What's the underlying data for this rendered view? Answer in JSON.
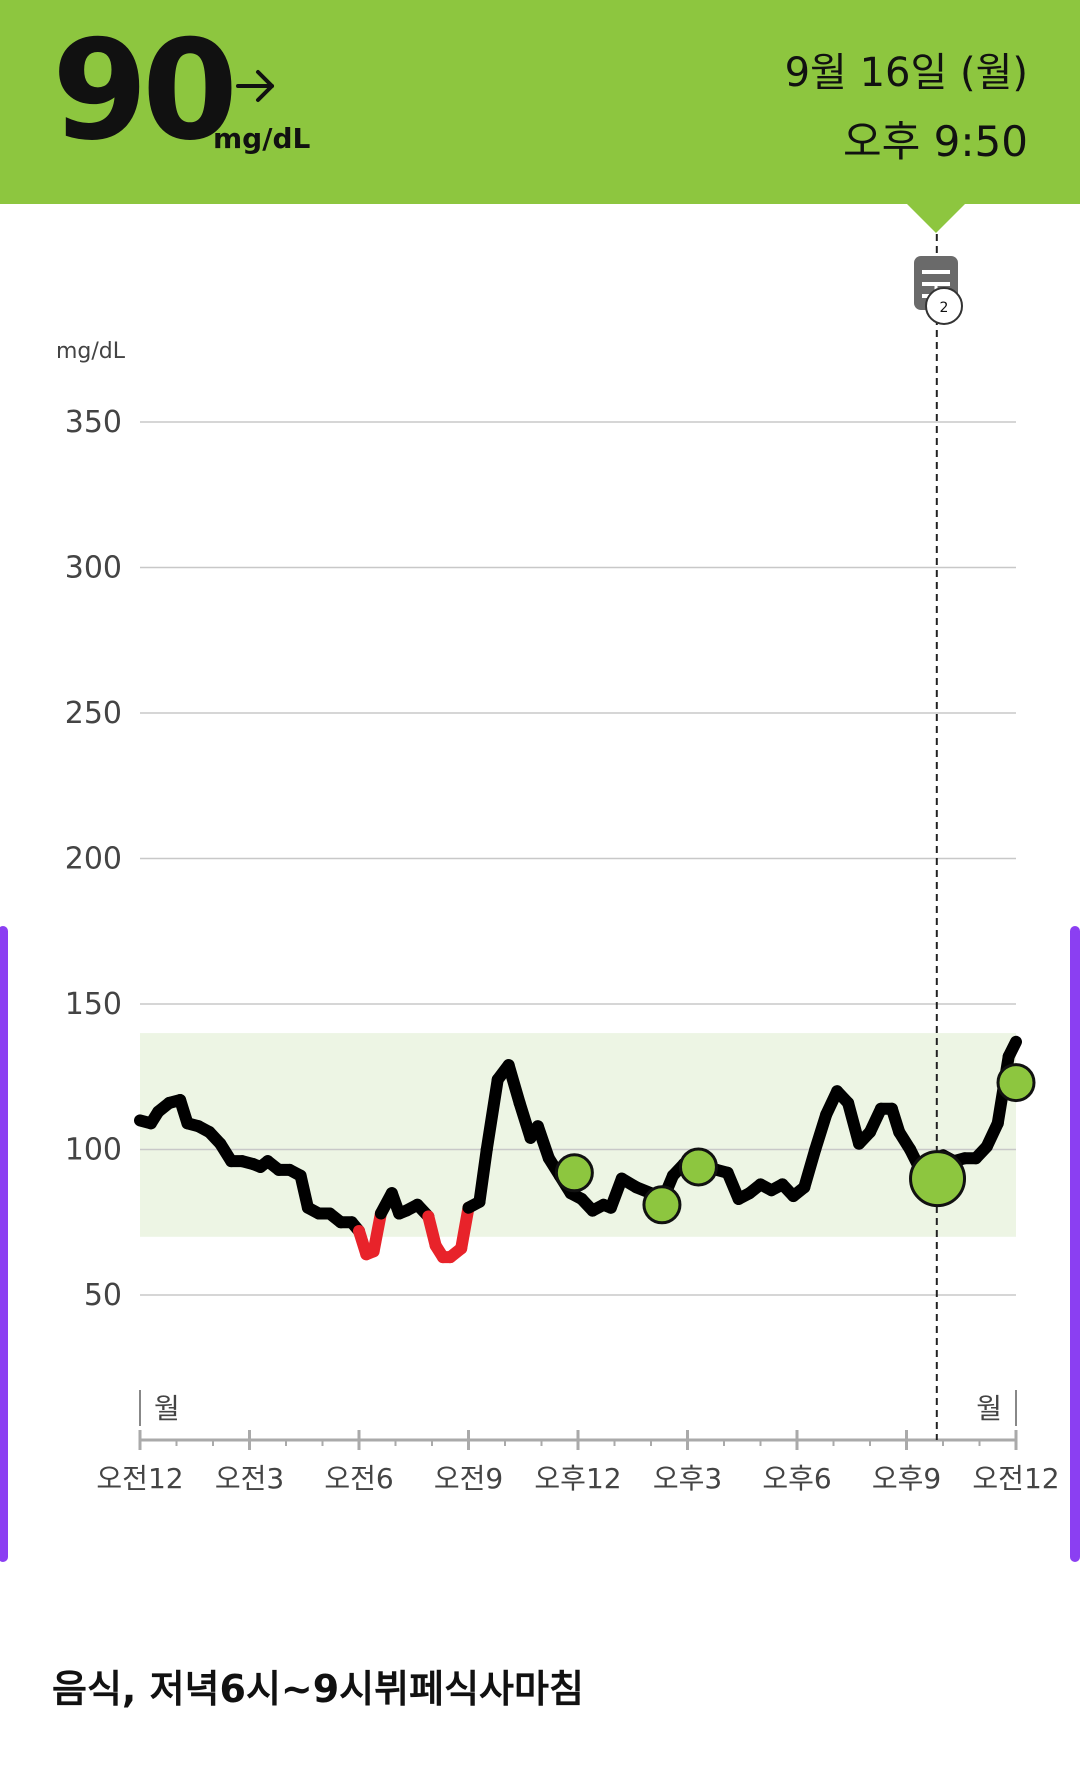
{
  "current_reading": {
    "value": "90",
    "unit": "mg/dL",
    "trend_icon": "arrow-right-icon",
    "date": "9월 16일 (월)",
    "time": "오후 9:50"
  },
  "colors": {
    "header": "#8dc63f",
    "target_band": "#edf5e4",
    "line": "#000000",
    "low_segment": "#e8232a",
    "marker": "#8dc63f",
    "side_bar": "#8b3ff2"
  },
  "note_icon": {
    "icon": "memo-icon",
    "count": "2"
  },
  "footer_note": "음식, 저녁6시~9시뷔페식사마침",
  "chart_data": {
    "type": "line",
    "y_unit_label": "mg/dL",
    "ylim": [
      0,
      375
    ],
    "y_ticks": [
      {
        "value": 350,
        "label": "350"
      },
      {
        "value": 300,
        "label": "300"
      },
      {
        "value": 250,
        "label": "250"
      },
      {
        "value": 200,
        "label": "200"
      },
      {
        "value": 150,
        "label": "150"
      },
      {
        "value": 100,
        "label": "100"
      },
      {
        "value": 50,
        "label": "50"
      }
    ],
    "xlim": [
      0,
      24
    ],
    "x_ticks": [
      {
        "hour": 0,
        "label": "오전12"
      },
      {
        "hour": 3,
        "label": "오전3"
      },
      {
        "hour": 6,
        "label": "오전6"
      },
      {
        "hour": 9,
        "label": "오전9"
      },
      {
        "hour": 12,
        "label": "오후12"
      },
      {
        "hour": 15,
        "label": "오후3"
      },
      {
        "hour": 18,
        "label": "오후6"
      },
      {
        "hour": 21,
        "label": "오후9"
      },
      {
        "hour": 24,
        "label": "오전12"
      }
    ],
    "day_labels": [
      {
        "hour": 0,
        "label": "월"
      },
      {
        "hour": 24,
        "label": "월"
      }
    ],
    "target_range": [
      70,
      140
    ],
    "low_threshold": 70,
    "cursor_hour": 21.83,
    "series": [
      {
        "points": [
          [
            0.0,
            110
          ],
          [
            0.3,
            109
          ],
          [
            0.5,
            113
          ],
          [
            0.8,
            116
          ],
          [
            1.1,
            117
          ],
          [
            1.3,
            109
          ],
          [
            1.6,
            108
          ],
          [
            1.9,
            106
          ],
          [
            2.2,
            102
          ],
          [
            2.5,
            96
          ],
          [
            2.8,
            96
          ],
          [
            3.1,
            95
          ],
          [
            3.3,
            94
          ],
          [
            3.5,
            96
          ],
          [
            3.8,
            93
          ],
          [
            4.1,
            93
          ],
          [
            4.4,
            91
          ],
          [
            4.6,
            80
          ],
          [
            4.9,
            78
          ],
          [
            5.2,
            78
          ],
          [
            5.5,
            75
          ],
          [
            5.8,
            75
          ],
          [
            6.0,
            72
          ],
          [
            6.2,
            64
          ],
          [
            6.4,
            65
          ],
          [
            6.6,
            78
          ],
          [
            6.9,
            85
          ],
          [
            7.1,
            78
          ],
          [
            7.3,
            79
          ],
          [
            7.6,
            81
          ],
          [
            7.9,
            77
          ],
          [
            8.1,
            67
          ],
          [
            8.3,
            63
          ],
          [
            8.5,
            63
          ],
          [
            8.8,
            66
          ],
          [
            9.0,
            80
          ],
          [
            9.3,
            82
          ],
          [
            9.5,
            100
          ],
          [
            9.8,
            124
          ],
          [
            10.1,
            129
          ],
          [
            10.4,
            116
          ],
          [
            10.7,
            104
          ],
          [
            10.9,
            108
          ],
          [
            11.2,
            97
          ],
          [
            11.5,
            91
          ],
          [
            11.8,
            85
          ],
          [
            12.1,
            83
          ],
          [
            12.4,
            79
          ],
          [
            12.7,
            81
          ],
          [
            12.9,
            80
          ],
          [
            13.2,
            90
          ],
          [
            13.6,
            87
          ],
          [
            14.0,
            85
          ],
          [
            14.3,
            82
          ],
          [
            14.6,
            91
          ],
          [
            14.9,
            95
          ],
          [
            15.2,
            96
          ],
          [
            15.5,
            94
          ],
          [
            15.8,
            93
          ],
          [
            16.1,
            92
          ],
          [
            16.4,
            83
          ],
          [
            16.7,
            85
          ],
          [
            17.0,
            88
          ],
          [
            17.3,
            86
          ],
          [
            17.6,
            88
          ],
          [
            17.9,
            84
          ],
          [
            18.2,
            87
          ],
          [
            18.5,
            100
          ],
          [
            18.8,
            112
          ],
          [
            19.1,
            120
          ],
          [
            19.4,
            116
          ],
          [
            19.7,
            102
          ],
          [
            20.0,
            106
          ],
          [
            20.3,
            114
          ],
          [
            20.6,
            114
          ],
          [
            20.8,
            106
          ],
          [
            21.1,
            100
          ],
          [
            21.5,
            90
          ],
          [
            21.8,
            96
          ],
          [
            22.0,
            98
          ],
          [
            22.3,
            96
          ],
          [
            22.6,
            97
          ],
          [
            22.9,
            97
          ],
          [
            23.2,
            101
          ],
          [
            23.5,
            109
          ],
          [
            23.8,
            132
          ],
          [
            24.0,
            137
          ]
        ]
      }
    ],
    "markers": [
      {
        "hour": 11.9,
        "value": 92
      },
      {
        "hour": 14.3,
        "value": 81
      },
      {
        "hour": 15.3,
        "value": 94
      },
      {
        "hour": 21.85,
        "value": 90,
        "highlight": true
      },
      {
        "hour": 24.0,
        "value": 123
      }
    ]
  }
}
